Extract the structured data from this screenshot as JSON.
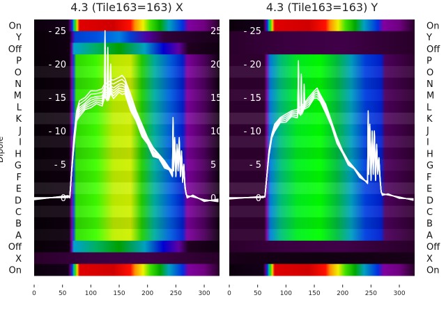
{
  "chart_data": [
    {
      "type": "heatmap",
      "title": "4.3 (Tile163=163) X",
      "ylabel": "Dipole",
      "row_labels": [
        "On",
        "Y",
        "Off",
        "P",
        "O",
        "N",
        "M",
        "L",
        "K",
        "J",
        "I",
        "H",
        "G",
        "F",
        "E",
        "D",
        "C",
        "B",
        "A",
        "Off",
        "X",
        "On"
      ],
      "row_profiles": [
        "on",
        "blue",
        "off_x",
        "dip_x",
        "dip_x",
        "dip_x",
        "dip_x",
        "dip_x",
        "dip_x",
        "dip_x",
        "dip_x",
        "dip_x",
        "dip_x",
        "dip_x",
        "dip_x",
        "dip_x",
        "dip_x",
        "dip_x",
        "dip_x",
        "off_x",
        "dark",
        "on"
      ],
      "xlim": [
        0,
        327
      ],
      "xticks": [
        "0",
        "50",
        "100",
        "150",
        "200",
        "250",
        "300"
      ],
      "overlay_ylim": [
        0,
        25.5
      ],
      "overlay_yticks": [
        "0",
        "5",
        "10",
        "15",
        "20",
        "25"
      ],
      "overlay_type": "line",
      "curve_x": [
        0,
        60,
        63,
        66,
        70,
        75,
        80,
        90,
        100,
        110,
        120,
        124,
        125,
        126,
        129,
        130,
        131,
        134,
        135,
        136,
        140,
        150,
        155,
        160,
        170,
        180,
        190,
        200,
        210,
        220,
        230,
        238,
        244,
        245,
        246,
        248,
        250,
        252,
        254,
        256,
        258,
        260,
        262,
        264,
        266,
        268,
        270,
        280,
        300,
        325
      ],
      "curve_y": [
        0,
        0,
        0.3,
        4,
        9,
        13,
        14.5,
        15,
        16,
        16,
        16.3,
        17,
        25,
        17,
        17.2,
        22.5,
        17.3,
        17.5,
        20,
        17.6,
        17.6,
        18,
        18.3,
        17.8,
        15.5,
        13,
        11,
        9,
        7.5,
        6.5,
        5.5,
        4.5,
        4,
        12,
        5,
        9,
        4,
        8,
        5,
        9,
        4,
        7,
        3,
        5,
        2,
        0.5,
        0.3,
        0.1,
        -0.3,
        -0.6
      ],
      "curve_scales": [
        1.0,
        0.97,
        0.94,
        0.92,
        0.9,
        0.88,
        0.86
      ]
    },
    {
      "type": "heatmap",
      "title": "4.3 (Tile163=163) Y",
      "row_labels": [
        "On",
        "Y",
        "Off",
        "P",
        "O",
        "N",
        "M",
        "L",
        "K",
        "J",
        "I",
        "H",
        "G",
        "F",
        "E",
        "D",
        "C",
        "B",
        "A",
        "Off",
        "X",
        "On"
      ],
      "row_profiles": [
        "on",
        "dark",
        "dark",
        "dip_y",
        "dip_y",
        "dip_y",
        "dip_y",
        "dip_y",
        "dip_y",
        "dip_y",
        "dip_y",
        "dip_y",
        "dip_y",
        "dip_y",
        "dip_y",
        "dip_y",
        "dip_y",
        "dip_y",
        "dip_y",
        "dark",
        "darker",
        "on"
      ],
      "xlim": [
        0,
        327
      ],
      "xticks": [
        "0",
        "50",
        "100",
        "150",
        "200",
        "250",
        "300"
      ],
      "overlay_ylim": [
        0,
        25.5
      ],
      "overlay_yticks": [
        "0",
        "5",
        "10",
        "15",
        "20",
        "25"
      ],
      "overlay_type": "line",
      "curve_x": [
        0,
        60,
        63,
        66,
        70,
        75,
        80,
        90,
        100,
        110,
        120,
        121,
        122,
        123,
        126,
        127,
        128,
        131,
        132,
        133,
        140,
        150,
        155,
        160,
        170,
        180,
        190,
        200,
        210,
        220,
        230,
        240,
        244,
        245,
        246,
        248,
        250,
        252,
        254,
        256,
        258,
        260,
        262,
        264,
        266,
        268,
        270,
        280,
        300,
        325
      ],
      "curve_y": [
        0,
        0,
        0.3,
        3,
        7,
        9.5,
        11,
        12,
        12.5,
        13,
        13.2,
        13.4,
        20.5,
        13.5,
        13.6,
        18.5,
        13.8,
        14,
        17,
        14.2,
        15,
        16,
        16.4,
        15.5,
        14,
        11.5,
        9,
        7,
        5.5,
        4.5,
        3.5,
        2.5,
        2.5,
        13,
        4,
        11,
        3,
        10,
        4,
        10,
        3,
        8,
        4,
        6,
        3,
        0.8,
        0.6,
        0.4,
        0.1,
        -0.4
      ],
      "curve_scales": [
        1.0,
        0.98,
        0.96,
        0.94,
        0.92
      ]
    }
  ]
}
